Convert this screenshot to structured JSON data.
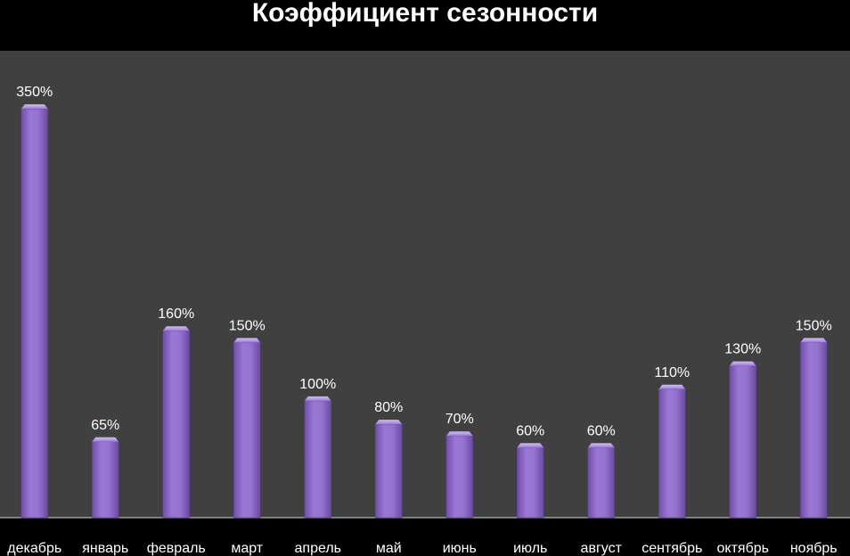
{
  "chart_data": {
    "type": "bar",
    "title": "Коэффициент сезонности",
    "categories": [
      "декабрь",
      "январь",
      "февраль",
      "март",
      "апрель",
      "май",
      "июнь",
      "июль",
      "август",
      "сентябрь",
      "октябрь",
      "ноябрь"
    ],
    "values": [
      350,
      65,
      160,
      150,
      100,
      80,
      70,
      60,
      60,
      110,
      130,
      150
    ],
    "labels": [
      "350%",
      "65%",
      "160%",
      "150%",
      "100%",
      "80%",
      "70%",
      "60%",
      "60%",
      "110%",
      "130%",
      "150%"
    ],
    "unit": "%",
    "ylim": [
      0,
      400
    ],
    "grid": false,
    "legend": "none",
    "colors": {
      "background": "#000000",
      "plot_area": "#404040",
      "bar": "#8e67c9",
      "bar_edge": "#5a3a8e",
      "text": "#ffffff"
    }
  }
}
